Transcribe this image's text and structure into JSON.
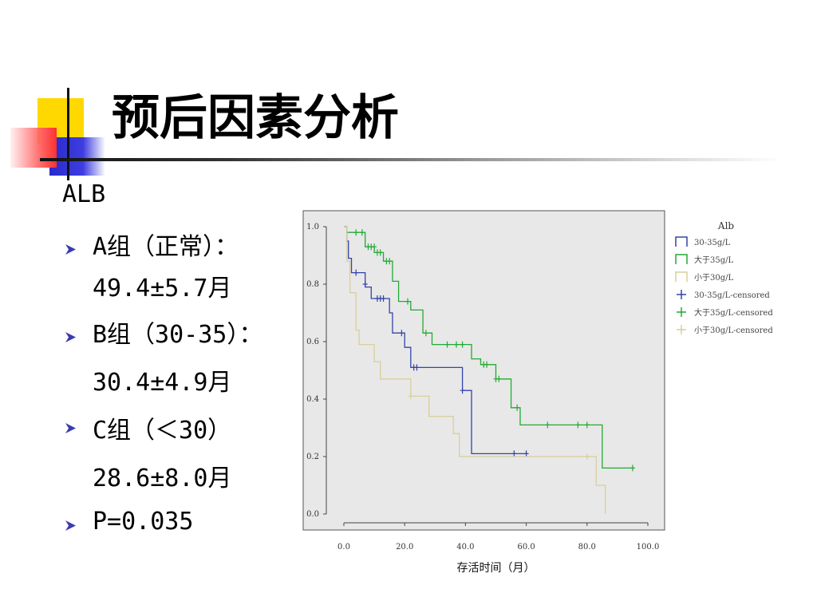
{
  "title": "预后因素分析",
  "text": {
    "heading": "ALB",
    "items": [
      {
        "lines": [
          "A组（正常）：",
          "49.4±5.7月"
        ]
      },
      {
        "lines": [
          "B组（30-35）：",
          "30.4±4.9月"
        ]
      },
      {
        "lines": [
          "C组（＜30）",
          "28.6±8.0月"
        ]
      },
      {
        "lines": [
          "P=0.035"
        ]
      }
    ]
  },
  "chart_data": {
    "type": "line",
    "xlabel": "存活时间（月）",
    "ylabel": "",
    "xlim": [
      0,
      100
    ],
    "ylim": [
      0,
      1
    ],
    "xticks": [
      "0.0",
      "20.0",
      "40.0",
      "60.0",
      "80.0",
      "100.0"
    ],
    "yticks": [
      "0.0",
      "0.2",
      "0.4",
      "0.6",
      "0.8",
      "1.0"
    ],
    "legend": {
      "title": "Alb",
      "placement": "right",
      "entries": [
        "30-35g/L",
        "大于35g/L",
        "小于30g/L",
        "30-35g/L-censored",
        "大于35g/L-censored",
        "小于30g/L-censored"
      ]
    },
    "series": [
      {
        "name": "30-35g/L",
        "color": "#3344aa",
        "steps": [
          [
            0,
            1.0
          ],
          [
            1,
            0.95
          ],
          [
            1.5,
            0.89
          ],
          [
            2.5,
            0.84
          ],
          [
            7,
            0.79
          ],
          [
            9,
            0.75
          ],
          [
            15,
            0.7
          ],
          [
            16,
            0.63
          ],
          [
            20,
            0.58
          ],
          [
            22,
            0.51
          ],
          [
            39,
            0.43
          ],
          [
            42,
            0.21
          ],
          [
            60,
            0.21
          ]
        ],
        "censored": [
          [
            4,
            0.84
          ],
          [
            7,
            0.8
          ],
          [
            11,
            0.75
          ],
          [
            12,
            0.75
          ],
          [
            13,
            0.75
          ],
          [
            19,
            0.63
          ],
          [
            23,
            0.51
          ],
          [
            24,
            0.51
          ],
          [
            39,
            0.43
          ],
          [
            56,
            0.21
          ],
          [
            60,
            0.21
          ]
        ]
      },
      {
        "name": "大于35g/L",
        "color": "#22aa33",
        "steps": [
          [
            0,
            1.0
          ],
          [
            1,
            0.98
          ],
          [
            7,
            0.93
          ],
          [
            10,
            0.91
          ],
          [
            13,
            0.88
          ],
          [
            16,
            0.81
          ],
          [
            18,
            0.74
          ],
          [
            22,
            0.71
          ],
          [
            26,
            0.63
          ],
          [
            29,
            0.59
          ],
          [
            42,
            0.54
          ],
          [
            45,
            0.52
          ],
          [
            50,
            0.47
          ],
          [
            55,
            0.37
          ],
          [
            58,
            0.31
          ],
          [
            85,
            0.16
          ],
          [
            95,
            0.16
          ]
        ],
        "censored": [
          [
            4,
            0.98
          ],
          [
            6,
            0.98
          ],
          [
            8,
            0.93
          ],
          [
            9,
            0.93
          ],
          [
            10,
            0.93
          ],
          [
            11,
            0.91
          ],
          [
            12,
            0.91
          ],
          [
            14,
            0.88
          ],
          [
            15,
            0.88
          ],
          [
            21,
            0.74
          ],
          [
            27,
            0.63
          ],
          [
            34,
            0.59
          ],
          [
            37,
            0.59
          ],
          [
            39,
            0.59
          ],
          [
            46,
            0.52
          ],
          [
            47,
            0.52
          ],
          [
            50,
            0.47
          ],
          [
            51,
            0.47
          ],
          [
            57,
            0.37
          ],
          [
            67,
            0.31
          ],
          [
            77,
            0.31
          ],
          [
            80,
            0.31
          ],
          [
            95,
            0.16
          ]
        ]
      },
      {
        "name": "小于30g/L",
        "color": "#d8cf9c",
        "steps": [
          [
            0,
            1.0
          ],
          [
            1,
            0.88
          ],
          [
            2,
            0.77
          ],
          [
            4,
            0.64
          ],
          [
            5,
            0.59
          ],
          [
            10,
            0.53
          ],
          [
            12,
            0.47
          ],
          [
            15,
            0.47
          ],
          [
            22,
            0.41
          ],
          [
            28,
            0.34
          ],
          [
            36,
            0.28
          ],
          [
            38,
            0.2
          ],
          [
            80,
            0.2
          ],
          [
            83,
            0.1
          ],
          [
            86,
            0.0
          ]
        ],
        "censored": [
          [
            22,
            0.41
          ],
          [
            80,
            0.2
          ]
        ]
      }
    ]
  }
}
